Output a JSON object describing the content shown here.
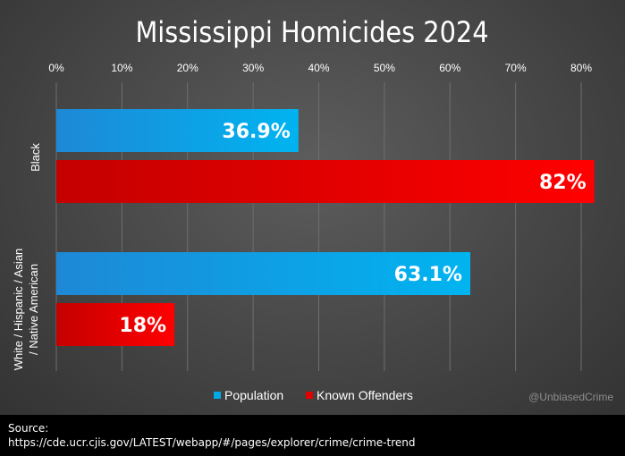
{
  "chart_data": {
    "type": "bar",
    "orientation": "horizontal",
    "title": "Mississippi Homicides 2024",
    "categories": [
      "Black",
      "White / Hispanic / Asian / Native American"
    ],
    "series": [
      {
        "name": "Population",
        "values": [
          36.9,
          63.1
        ],
        "labels": [
          "36.9%",
          "63.1%"
        ],
        "color": "#00a8e8"
      },
      {
        "name": "Known Offenders",
        "values": [
          82,
          18
        ],
        "labels": [
          "82%",
          "18%"
        ],
        "color": "#e00000"
      }
    ],
    "xlim": [
      0,
      82
    ],
    "xticks": [
      "0%",
      "10%",
      "20%",
      "30%",
      "40%",
      "50%",
      "60%",
      "70%",
      "80%"
    ],
    "xtick_values": [
      0,
      10,
      20,
      30,
      40,
      50,
      60,
      70,
      80
    ],
    "grid": true,
    "legend_position": "bottom"
  },
  "watermark": "@UnbiasedCrime",
  "source": {
    "label": "Source:",
    "url": "https://cde.ucr.cjis.gov/LATEST/webapp/#/pages/explorer/crime/crime-trend"
  }
}
